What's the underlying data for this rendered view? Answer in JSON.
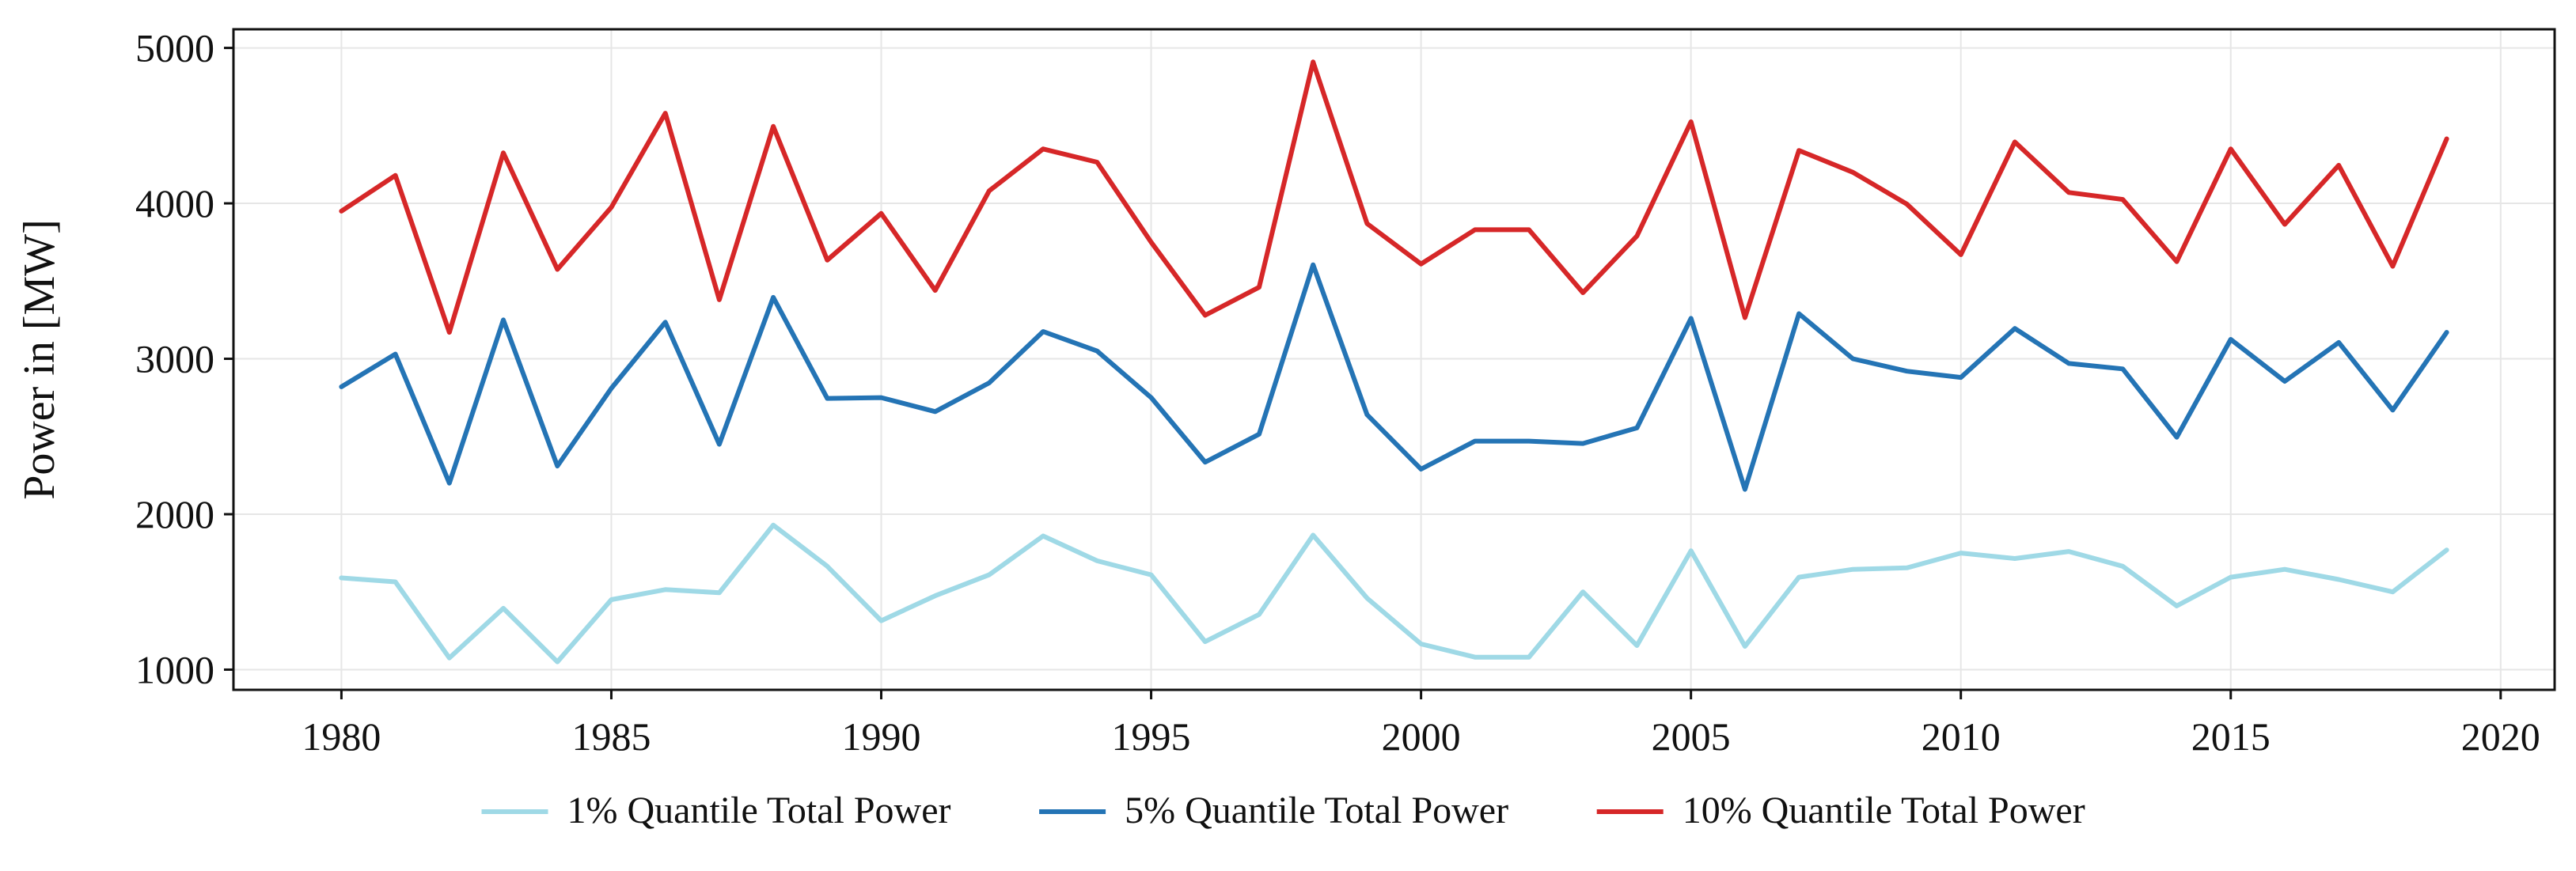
{
  "chart_data": {
    "type": "line",
    "title": "",
    "xlabel": "",
    "ylabel": "Power in [MW]",
    "xlim": [
      1978,
      2021
    ],
    "ylim": [
      870,
      5120
    ],
    "xticks": [
      1980,
      1985,
      1990,
      1995,
      2000,
      2005,
      2010,
      2015,
      2020
    ],
    "yticks": [
      1000,
      2000,
      3000,
      4000,
      5000
    ],
    "grid": true,
    "legend_position": "bottom-center",
    "x": [
      1980,
      1981,
      1982,
      1983,
      1984,
      1985,
      1986,
      1987,
      1988,
      1989,
      1990,
      1991,
      1992,
      1993,
      1994,
      1995,
      1996,
      1997,
      1998,
      1999,
      2000,
      2001,
      2002,
      2003,
      2004,
      2005,
      2006,
      2007,
      2008,
      2009,
      2010,
      2011,
      2012,
      2013,
      2014,
      2015,
      2016,
      2017,
      2018,
      2019
    ],
    "series": [
      {
        "name": "1% Quantile Total Power",
        "color": "#9fd9e6",
        "values": [
          1590,
          1565,
          1075,
          1395,
          1050,
          1450,
          1515,
          1495,
          1930,
          1665,
          1315,
          1475,
          1610,
          1860,
          1700,
          1610,
          1180,
          1355,
          1865,
          1460,
          1165,
          1080,
          1080,
          1500,
          1155,
          1765,
          1150,
          1595,
          1645,
          1655,
          1750,
          1715,
          1760,
          1665,
          1410,
          1595,
          1645,
          1580,
          1500,
          1770
        ]
      },
      {
        "name": "5% Quantile Total Power",
        "color": "#2474b5",
        "values": [
          2820,
          3030,
          2200,
          3250,
          2310,
          2810,
          3235,
          2450,
          3395,
          2745,
          2750,
          2660,
          2845,
          3175,
          3050,
          2750,
          2335,
          2515,
          3605,
          2640,
          2290,
          2470,
          2470,
          2455,
          2555,
          3260,
          2160,
          3290,
          3000,
          2920,
          2880,
          3195,
          2970,
          2935,
          2495,
          3125,
          2855,
          3105,
          2670,
          3170
        ]
      },
      {
        "name": "10% Quantile Total Power",
        "color": "#d62728",
        "values": [
          3950,
          4180,
          3170,
          4325,
          3575,
          3975,
          4580,
          3380,
          4495,
          3635,
          3935,
          3440,
          4080,
          4350,
          4265,
          3750,
          3280,
          3460,
          4910,
          3870,
          3610,
          3830,
          3830,
          3425,
          3790,
          4525,
          3265,
          4340,
          4200,
          3995,
          3670,
          4395,
          4070,
          4025,
          3625,
          4350,
          3865,
          4245,
          3595,
          4415
        ]
      }
    ]
  }
}
